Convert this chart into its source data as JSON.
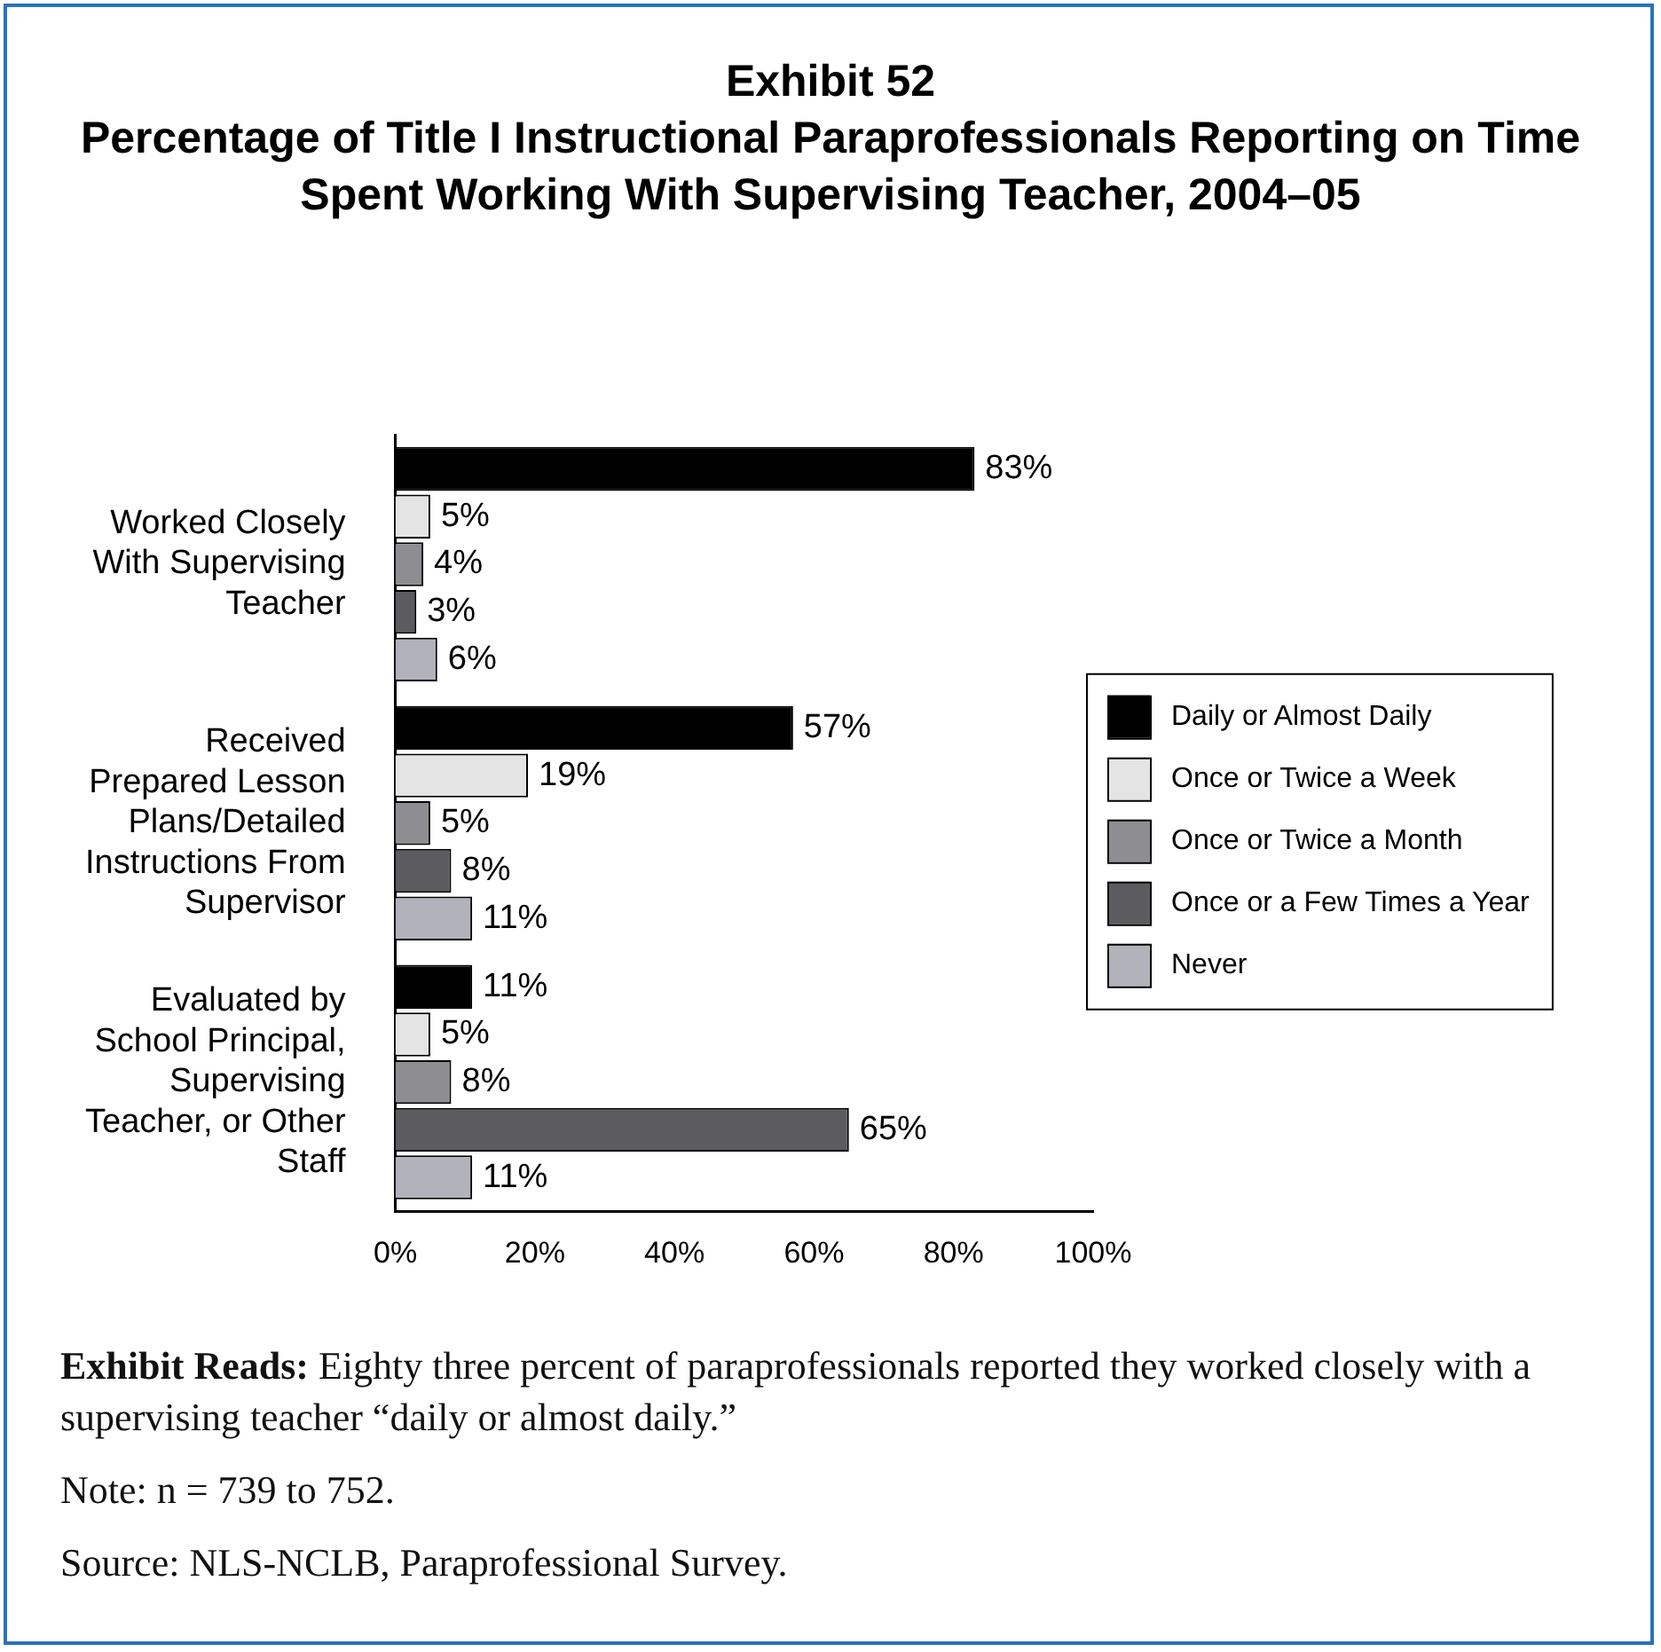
{
  "chart_data": {
    "type": "bar",
    "orientation": "horizontal",
    "title": "Exhibit 52",
    "subtitle": "Percentage of Title I Instructional Paraprofessionals Reporting on Time Spent Working With Supervising Teacher, 2004–05",
    "categories": [
      "Worked Closely With Supervising Teacher",
      "Received Prepared Lesson Plans/Detailed Instructions From Supervisor",
      "Evaluated by School Principal, Supervising Teacher, or Other Staff"
    ],
    "series": [
      {
        "name": "Daily or Almost Daily",
        "color": "#000000",
        "values": [
          83,
          57,
          11
        ],
        "value_labels": [
          "83%",
          "57%",
          "11%"
        ]
      },
      {
        "name": "Once or Twice a Week",
        "color": "#e4e4e4",
        "values": [
          5,
          19,
          5
        ],
        "value_labels": [
          "5%",
          "19%",
          "5%"
        ]
      },
      {
        "name": "Once or Twice a Month",
        "color": "#8e8e92",
        "values": [
          4,
          5,
          8
        ],
        "value_labels": [
          "4%",
          "5%",
          "8%"
        ]
      },
      {
        "name": "Once or a Few Times a Year",
        "color": "#5c5c60",
        "values": [
          3,
          8,
          65
        ],
        "value_labels": [
          "3%",
          "8%",
          "65%"
        ]
      },
      {
        "name": "Never",
        "color": "#b2b2ba",
        "values": [
          6,
          11,
          11
        ],
        "value_labels": [
          "6%",
          "11%",
          "11%"
        ]
      }
    ],
    "xlim": [
      0,
      100
    ],
    "xticks": [
      {
        "value": 0,
        "label": "0%"
      },
      {
        "value": 20,
        "label": "20%"
      },
      {
        "value": 40,
        "label": "40%"
      },
      {
        "value": 60,
        "label": "60%"
      },
      {
        "value": 80,
        "label": "80%"
      },
      {
        "value": 100,
        "label": "100%"
      }
    ],
    "grid": false,
    "legend": "right",
    "annotations": [
      "Exhibit Reads:  Eighty three percent of paraprofessionals reported they worked closely with a supervising teacher “daily or almost daily.”",
      "Note:  n = 739 to 752.",
      "Source:  NLS-NCLB, Paraprofessional Survey."
    ]
  }
}
